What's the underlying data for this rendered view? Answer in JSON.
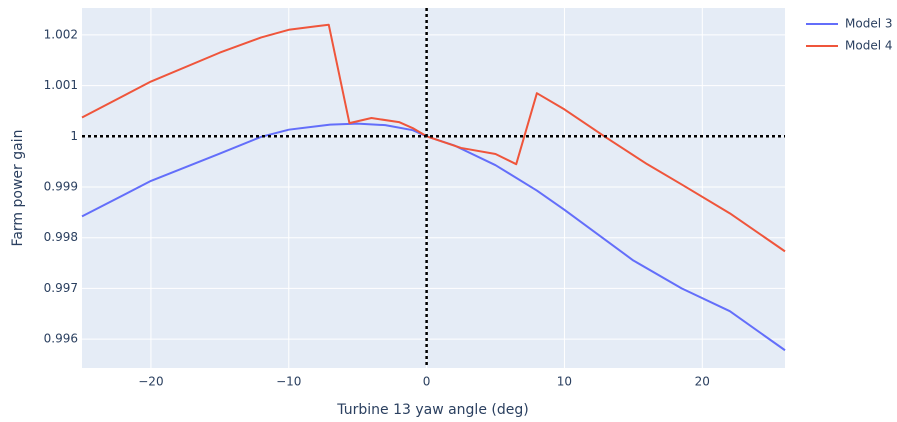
{
  "chart_data": {
    "type": "line",
    "xlabel": "Turbine 13 yaw angle (deg)",
    "ylabel": "Farm power gain",
    "xlim": [
      -25,
      26
    ],
    "ylim": [
      0.99543,
      1.00253
    ],
    "xticks": [
      {
        "value": -20,
        "label": "−20"
      },
      {
        "value": -10,
        "label": "−10"
      },
      0,
      10,
      20
    ],
    "yticks": [
      0.996,
      0.997,
      0.998,
      0.999,
      1,
      1.001,
      1.002
    ],
    "grid": true,
    "vline": 0,
    "hline": 1,
    "legend": "outside-top-right",
    "series": [
      {
        "name": "Model 3",
        "color": "#636efa",
        "x": [
          -25,
          -20,
          -15,
          -12,
          -10,
          -7,
          -5,
          -3,
          -1,
          0,
          2,
          5,
          8,
          10,
          15,
          18.5,
          22,
          26
        ],
        "values": [
          0.99842,
          0.99912,
          0.99966,
          0.99999,
          1.00013,
          1.00023,
          1.00025,
          1.00022,
          1.00012,
          1.0,
          0.99982,
          0.99943,
          0.99893,
          0.99855,
          0.99755,
          0.997,
          0.99655,
          0.99578
        ]
      },
      {
        "name": "Model 4",
        "color": "#ef553b",
        "x": [
          -25,
          -20,
          -15,
          -12,
          -10,
          -8,
          -7.1,
          -5.6,
          -4,
          -2,
          -1,
          0,
          2.5,
          5,
          6.5,
          8,
          10,
          13,
          16,
          18.5,
          22,
          26
        ],
        "values": [
          1.00037,
          1.00108,
          1.00165,
          1.00195,
          1.0021,
          1.00217,
          1.0022,
          1.00026,
          1.00036,
          1.00028,
          1.00016,
          1.0,
          0.99977,
          0.99965,
          0.99945,
          1.00085,
          1.00053,
          0.99998,
          0.99945,
          0.99905,
          0.99848,
          0.99773
        ]
      }
    ]
  }
}
